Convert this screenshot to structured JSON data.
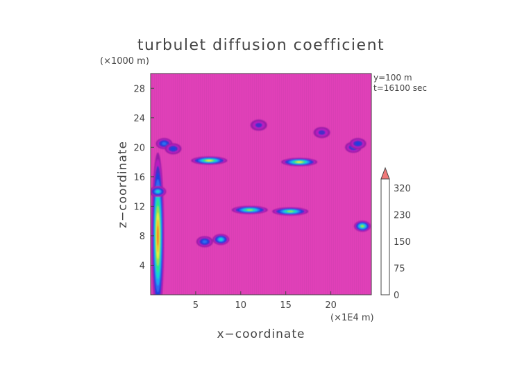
{
  "chart_data": {
    "type": "heatmap",
    "title": "turbulet diffusion coefficient",
    "xlabel": "x−coordinate",
    "ylabel": "z−coordinate",
    "x_unit": "(×1E4 m)",
    "y_unit": "(×1000 m)",
    "info": [
      "y=100 m",
      "t=16100 sec"
    ],
    "xlim": [
      0,
      24.5
    ],
    "ylim": [
      0,
      30
    ],
    "xticks": [
      5,
      10,
      15,
      20
    ],
    "yticks": [
      4,
      8,
      12,
      16,
      20,
      24,
      28
    ],
    "colorbar": {
      "ticks": [
        "0",
        "75",
        "150",
        "230",
        "320"
      ],
      "levels": [
        0,
        25,
        50,
        75,
        100,
        125,
        150,
        175,
        200,
        230,
        260,
        290,
        320,
        350
      ],
      "colors": [
        "#9a1aa8",
        "#b91fc0",
        "#4a2ec8",
        "#1f3fe0",
        "#2e6cf0",
        "#1fa8f0",
        "#19d7c8",
        "#2fe08a",
        "#9fe04a",
        "#ecec3a",
        "#f5b62a",
        "#f5791f",
        "#f0301e"
      ],
      "extend_color": "#f07a7a"
    },
    "background_color": "#e040b8",
    "features": [
      {
        "x": 0.8,
        "z": 8,
        "value": 300
      },
      {
        "x": 6.5,
        "z": 18.2,
        "value": 230
      },
      {
        "x": 16.5,
        "z": 18.0,
        "value": 240
      },
      {
        "x": 15.5,
        "z": 11.3,
        "value": 220
      },
      {
        "x": 11,
        "z": 11.5,
        "value": 200
      },
      {
        "x": 23.5,
        "z": 9.3,
        "value": 200
      },
      {
        "x": 7.8,
        "z": 7.5,
        "value": 150
      },
      {
        "x": 1.5,
        "z": 20.5,
        "value": 100
      },
      {
        "x": 2.5,
        "z": 19.8,
        "value": 90
      },
      {
        "x": 22.5,
        "z": 20,
        "value": 80
      },
      {
        "x": 23,
        "z": 20.5,
        "value": 80
      },
      {
        "x": 0.8,
        "z": 14,
        "value": 150
      },
      {
        "x": 12,
        "z": 23,
        "value": 60
      },
      {
        "x": 19,
        "z": 22,
        "value": 70
      },
      {
        "x": 6,
        "z": 7.2,
        "value": 110
      }
    ]
  }
}
